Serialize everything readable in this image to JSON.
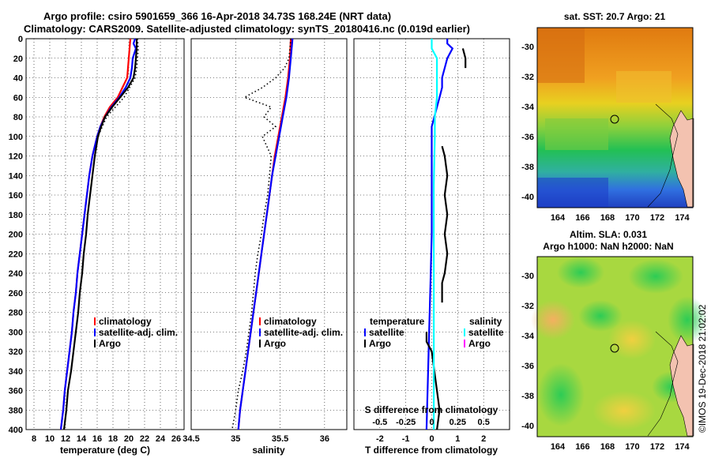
{
  "header": {
    "line1": "Argo profile: csiro 5901659_366 16-Apr-2018 34.73S 168.24E (NRT data)",
    "line2": "Climatology: CARS2009. Satellite-adjusted climatology: synTS_20180416.nc (0.019d earlier)"
  },
  "colors": {
    "climatology": "#ff0000",
    "satellite": "#0000ff",
    "argo": "#000000",
    "sal_satellite": "#00ffff",
    "sal_argo": "#ff00ff"
  },
  "depth_axis": {
    "ylim": [
      0,
      400
    ],
    "ticks": [
      "0",
      "20",
      "40",
      "60",
      "80",
      "100",
      "120",
      "140",
      "160",
      "180",
      "200",
      "220",
      "240",
      "260",
      "280",
      "300",
      "320",
      "340",
      "360",
      "380",
      "400"
    ]
  },
  "chart_data": [
    {
      "id": "temperature",
      "type": "line",
      "xlabel": "temperature (deg C)",
      "ylabel": "depth",
      "xlim": [
        7,
        27
      ],
      "ylim": [
        0,
        400
      ],
      "xticks": [
        "8",
        "10",
        "12",
        "14",
        "16",
        "18",
        "20",
        "22",
        "24",
        "26"
      ],
      "legend": [
        "climatology",
        "satellite-adj. clim.",
        "Argo"
      ],
      "series": [
        {
          "name": "climatology",
          "color": "#ff0000",
          "style": "solid",
          "depth": [
            0,
            20,
            40,
            50,
            60,
            70,
            80,
            90,
            100,
            110,
            120,
            140,
            160,
            180,
            200,
            220,
            240,
            260,
            280,
            300,
            320,
            340,
            360,
            380,
            400
          ],
          "values": [
            20.2,
            20.0,
            19.8,
            19.2,
            18.6,
            17.6,
            16.9,
            16.4,
            16.0,
            15.7,
            15.4,
            15.0,
            14.7,
            14.4,
            14.1,
            13.8,
            13.5,
            13.3,
            13.0,
            12.8,
            12.5,
            12.2,
            11.9,
            11.7,
            11.4
          ]
        },
        {
          "name": "satellite-adj. clim.",
          "color": "#0000ff",
          "style": "solid",
          "depth": [
            0,
            5,
            10,
            20,
            30,
            40,
            50,
            60,
            70,
            80,
            90,
            100,
            110,
            120,
            140,
            160,
            180,
            200,
            220,
            240,
            260,
            280,
            300,
            320,
            340,
            360,
            380,
            400
          ],
          "values": [
            20.8,
            20.6,
            20.9,
            20.5,
            20.4,
            20.2,
            19.6,
            18.8,
            17.8,
            17.0,
            16.4,
            16.0,
            15.7,
            15.4,
            15.0,
            14.7,
            14.4,
            14.1,
            13.8,
            13.5,
            13.3,
            13.0,
            12.8,
            12.5,
            12.2,
            11.9,
            11.7,
            11.4
          ]
        },
        {
          "name": "Argo",
          "color": "#000000",
          "style": "solid",
          "depth": [
            0,
            10,
            20,
            30,
            40,
            50,
            60,
            70,
            80,
            90,
            100,
            110,
            120,
            140,
            160,
            180,
            200,
            220,
            240,
            260,
            280,
            300,
            320,
            340,
            360,
            380,
            400
          ],
          "values": [
            21.0,
            21.0,
            20.9,
            20.8,
            20.6,
            19.9,
            18.9,
            17.9,
            17.0,
            16.5,
            16.1,
            15.9,
            15.7,
            15.4,
            15.1,
            14.8,
            14.6,
            14.3,
            14.1,
            13.8,
            13.6,
            13.3,
            13.0,
            12.7,
            12.3,
            12.1,
            11.8
          ]
        },
        {
          "name": "Argo-dots",
          "color": "#000000",
          "style": "dotted",
          "depth": [
            0,
            10,
            20,
            30,
            40,
            60,
            80,
            100
          ],
          "values": [
            21.1,
            21.2,
            21.1,
            21.0,
            20.8,
            19.4,
            17.2,
            16.1
          ]
        }
      ]
    },
    {
      "id": "salinity",
      "type": "line",
      "xlabel": "salinity",
      "xlim": [
        34.5,
        36.25
      ],
      "ylim": [
        0,
        400
      ],
      "xticks": [
        "34.5",
        "35",
        "35.5",
        "36"
      ],
      "legend": [
        "climatology",
        "satellite-adj. clim.",
        "Argo"
      ],
      "series": [
        {
          "name": "climatology",
          "color": "#ff0000",
          "style": "solid",
          "depth": [
            0,
            20,
            40,
            60,
            80,
            100,
            120,
            140,
            160,
            180,
            200,
            220,
            240,
            260,
            280,
            300,
            320,
            340,
            360,
            380,
            400
          ],
          "values": [
            35.62,
            35.61,
            35.59,
            35.56,
            35.52,
            35.48,
            35.44,
            35.41,
            35.38,
            35.35,
            35.32,
            35.29,
            35.26,
            35.23,
            35.2,
            35.17,
            35.14,
            35.11,
            35.08,
            35.05,
            35.03
          ]
        },
        {
          "name": "satellite-adj. clim.",
          "color": "#0000ff",
          "style": "solid",
          "depth": [
            0,
            20,
            40,
            60,
            80,
            100,
            120,
            140,
            160,
            180,
            200,
            220,
            240,
            260,
            280,
            300,
            320,
            340,
            360,
            380,
            400
          ],
          "values": [
            35.64,
            35.62,
            35.6,
            35.57,
            35.53,
            35.49,
            35.45,
            35.41,
            35.38,
            35.35,
            35.32,
            35.29,
            35.26,
            35.23,
            35.2,
            35.17,
            35.14,
            35.11,
            35.08,
            35.05,
            35.03
          ]
        },
        {
          "name": "Argo",
          "color": "#000000",
          "style": "dotted",
          "depth": [
            0,
            10,
            20,
            30,
            40,
            50,
            60,
            65,
            70,
            80,
            90,
            100,
            120,
            140,
            160,
            180,
            200,
            220,
            240,
            260,
            280,
            300,
            320,
            340,
            360,
            380,
            400
          ],
          "values": [
            35.62,
            35.61,
            35.6,
            35.55,
            35.45,
            35.3,
            35.1,
            35.25,
            35.4,
            35.32,
            35.45,
            35.3,
            35.4,
            35.38,
            35.36,
            35.32,
            35.29,
            35.25,
            35.22,
            35.2,
            35.18,
            35.15,
            35.12,
            35.08,
            35.03,
            35.0,
            34.96
          ]
        }
      ]
    },
    {
      "id": "difference",
      "type": "line",
      "xlabel": "T difference from climatology",
      "secondary_xlabel": "S difference from climatology",
      "xlim": [
        -3,
        3
      ],
      "ylim": [
        0,
        400
      ],
      "xticks": [
        "-2",
        "-1",
        "0",
        "1",
        "2"
      ],
      "secondary_xticks": [
        "-0.5",
        "-0.25",
        "0",
        "0.25",
        "0.5"
      ],
      "legend_temperature_title": "temperature",
      "legend_salinity_title": "salinity",
      "legend_temperature": [
        "satellite",
        "Argo"
      ],
      "legend_salinity": [
        "satellite",
        "Argo"
      ],
      "series": [
        {
          "name": "T satellite",
          "color": "#0000ff",
          "style": "solid",
          "depth": [
            0,
            5,
            10,
            20,
            30,
            40,
            50,
            60,
            70,
            80,
            90,
            100,
            150,
            200,
            250,
            300,
            350,
            400
          ],
          "values": [
            0.6,
            0.6,
            0.8,
            0.6,
            0.5,
            0.4,
            0.4,
            0.3,
            0.2,
            0.1,
            0.0,
            0.0,
            0.0,
            0.0,
            -0.05,
            -0.1,
            -0.15,
            -0.2
          ]
        },
        {
          "name": "T Argo",
          "color": "#000000",
          "style": "solid",
          "depth": [
            0,
            10,
            20,
            30,
            35,
            60,
            70,
            80,
            90,
            100,
            105,
            110,
            120,
            140,
            160,
            180,
            200,
            220,
            240,
            250,
            260,
            270,
            290,
            300,
            310,
            320,
            340,
            360,
            380,
            400
          ],
          "values": [
            null,
            1.2,
            1.3,
            1.3,
            null,
            null,
            null,
            null,
            null,
            null,
            null,
            0.4,
            0.5,
            0.6,
            0.5,
            0.6,
            0.5,
            0.6,
            0.5,
            0.4,
            0.4,
            0.4,
            null,
            -0.2,
            -0.2,
            0.0,
            0.1,
            0.2,
            0.3,
            0.2
          ]
        },
        {
          "name": "S satellite",
          "color": "#00ffff",
          "style": "solid",
          "depth": [
            0,
            10,
            20,
            40,
            60,
            80,
            100,
            150,
            200,
            250,
            300,
            350,
            400
          ],
          "values": [
            0.0,
            0.0,
            0.05,
            0.05,
            0.05,
            0.03,
            0.03,
            0.02,
            0.02,
            0.02,
            0.02,
            0.02,
            0.02
          ]
        }
      ]
    }
  ],
  "maps": {
    "sst": {
      "title": "sat. SST: 20.7 Argo: 21",
      "lon_ticks": [
        "164",
        "166",
        "168",
        "170",
        "172",
        "174"
      ],
      "lat_ticks": [
        "-30",
        "-32",
        "-34",
        "-36",
        "-38",
        "-40"
      ]
    },
    "sla": {
      "title_line1": "Altim. SLA: 0.031",
      "title_line2": "Argo h1000: NaN h2000: NaN",
      "lon_ticks": [
        "164",
        "166",
        "168",
        "170",
        "172",
        "174"
      ],
      "lat_ticks": [
        "-30",
        "-32",
        "-34",
        "-36",
        "-38",
        "-40"
      ]
    }
  },
  "side_label": "©IMOS 19-Dec-2018 21:02:02"
}
